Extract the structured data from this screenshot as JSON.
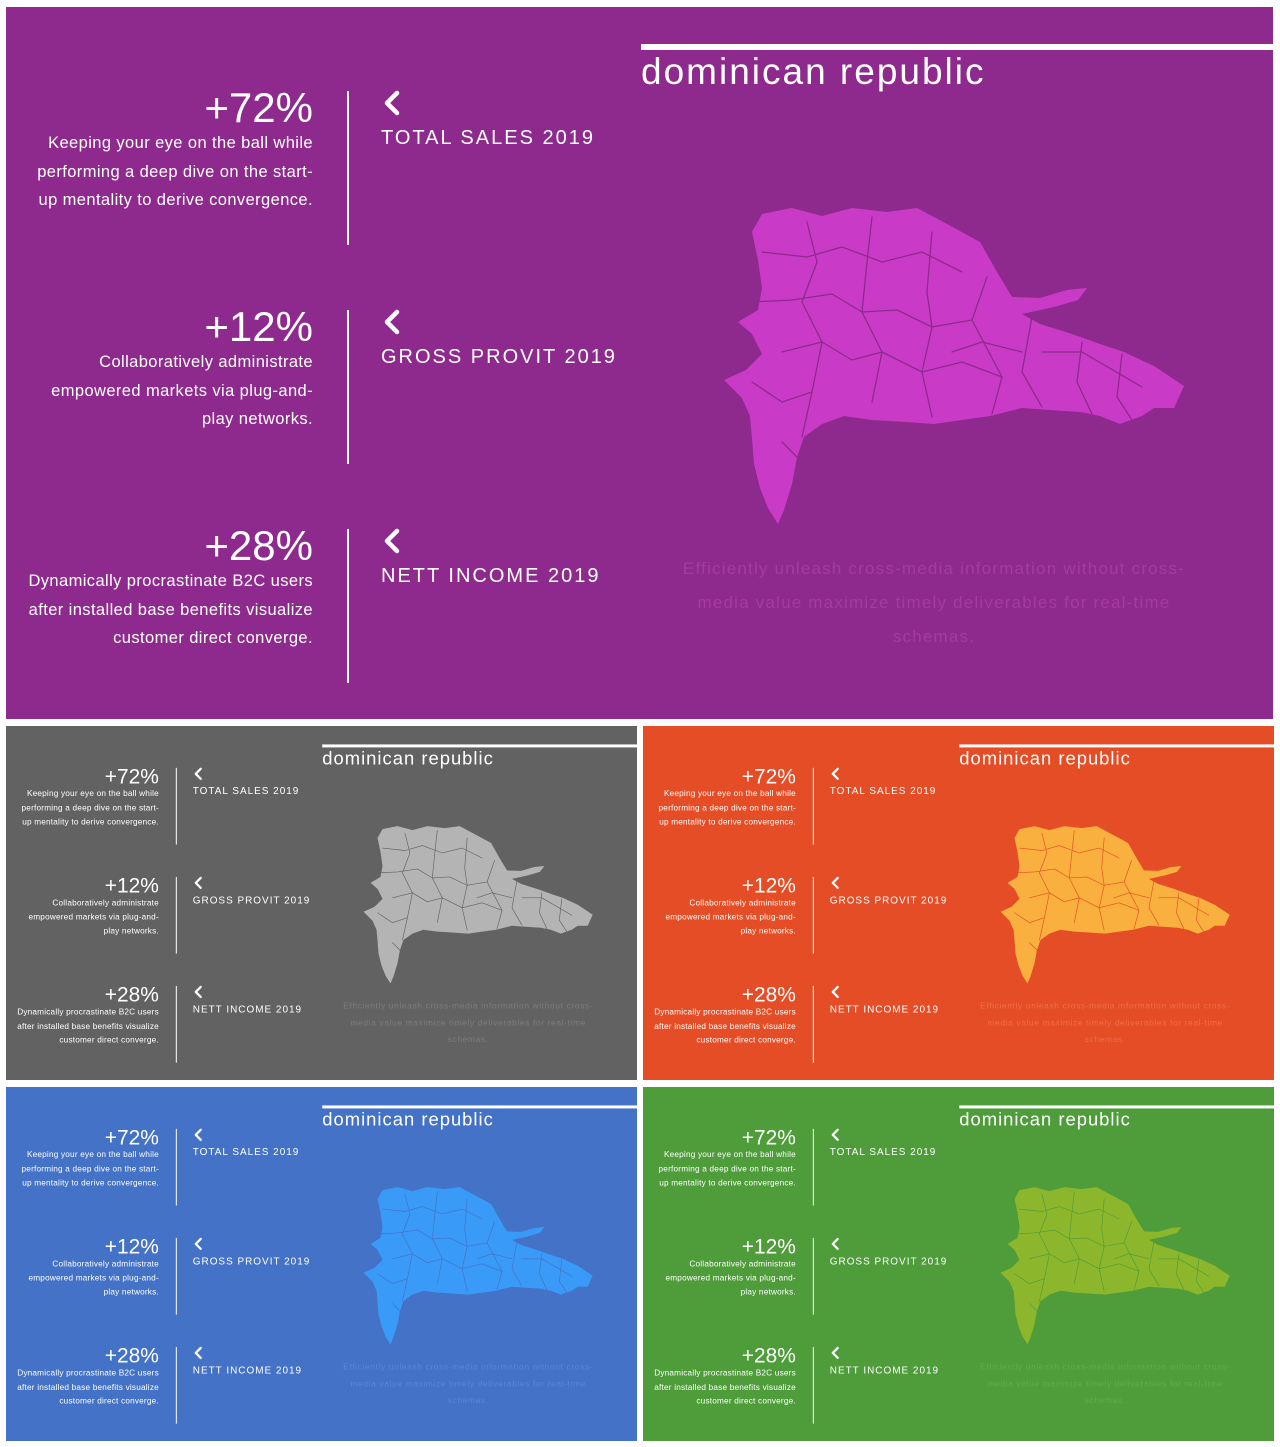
{
  "title": "dominican republic",
  "stats": [
    {
      "value": "+72%",
      "description": "Keeping your eye on the ball while performing a deep dive on the start-up mentality to derive convergence.",
      "label": "TOTAL SALES 2019"
    },
    {
      "value": "+12%",
      "description": "Collaboratively administrate empowered markets via plug-and-play networks.",
      "label": "GROSS PROVIT 2019"
    },
    {
      "value": "+28%",
      "description": "Dynamically procrastinate B2C users after installed base benefits visualize customer direct converge.",
      "label": "NETT INCOME 2019"
    }
  ],
  "caption": "Efficiently unleash cross-media information without cross-media value maximize timely deliverables for real-time schemas.",
  "icons": {
    "stat_icon": "chevron-left-icon",
    "map": "dominican-republic-map"
  },
  "themes": [
    {
      "name": "purple",
      "background": "#8e2a8d",
      "map_color": "#c93bc7",
      "caption_color": "#a43aa2"
    },
    {
      "name": "gray",
      "background": "#626262",
      "map_color": "#b4b4b4",
      "caption_color": "#7c7c7c"
    },
    {
      "name": "orange",
      "background": "#e44d25",
      "map_color": "#f9b03f",
      "caption_color": "#ef6e4c"
    },
    {
      "name": "blue",
      "background": "#4372c6",
      "map_color": "#3a9af7",
      "caption_color": "#5a88d6"
    },
    {
      "name": "green",
      "background": "#4e9c3a",
      "map_color": "#8cb62c",
      "caption_color": "#61ac4c"
    }
  ]
}
